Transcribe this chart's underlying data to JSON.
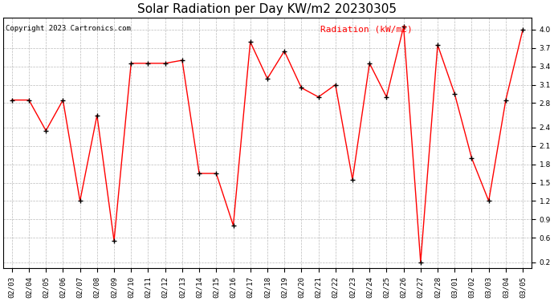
{
  "title": "Solar Radiation per Day KW/m2 20230305",
  "copyright": "Copyright 2023 Cartronics.com",
  "legend_label": "Radiation (kW/m2)",
  "dates": [
    "02/03",
    "02/04",
    "02/05",
    "02/06",
    "02/07",
    "02/08",
    "02/09",
    "02/10",
    "02/11",
    "02/12",
    "02/13",
    "02/14",
    "02/15",
    "02/16",
    "02/17",
    "02/18",
    "02/19",
    "02/20",
    "02/21",
    "02/22",
    "02/23",
    "02/24",
    "02/25",
    "02/26",
    "02/27",
    "02/28",
    "03/01",
    "03/02",
    "03/03",
    "03/04",
    "03/05"
  ],
  "values": [
    2.85,
    2.85,
    2.35,
    2.85,
    1.2,
    2.6,
    0.55,
    3.45,
    3.45,
    3.45,
    3.5,
    1.65,
    1.65,
    0.8,
    3.8,
    3.2,
    3.65,
    3.05,
    2.9,
    3.1,
    1.55,
    3.45,
    2.9,
    4.05,
    0.2,
    3.75,
    2.95,
    1.9,
    1.2,
    2.85,
    4.0
  ],
  "line_color": "red",
  "marker_color": "black",
  "marker": "+",
  "grid_color": "#bbbbbb",
  "bg_color": "white",
  "ylim": [
    0.1,
    4.2
  ],
  "yticks": [
    0.2,
    0.6,
    0.9,
    1.2,
    1.5,
    1.8,
    2.1,
    2.4,
    2.8,
    3.1,
    3.4,
    3.7,
    4.0
  ],
  "title_fontsize": 11,
  "copyright_fontsize": 6.5,
  "legend_fontsize": 8,
  "tick_fontsize": 6.5
}
